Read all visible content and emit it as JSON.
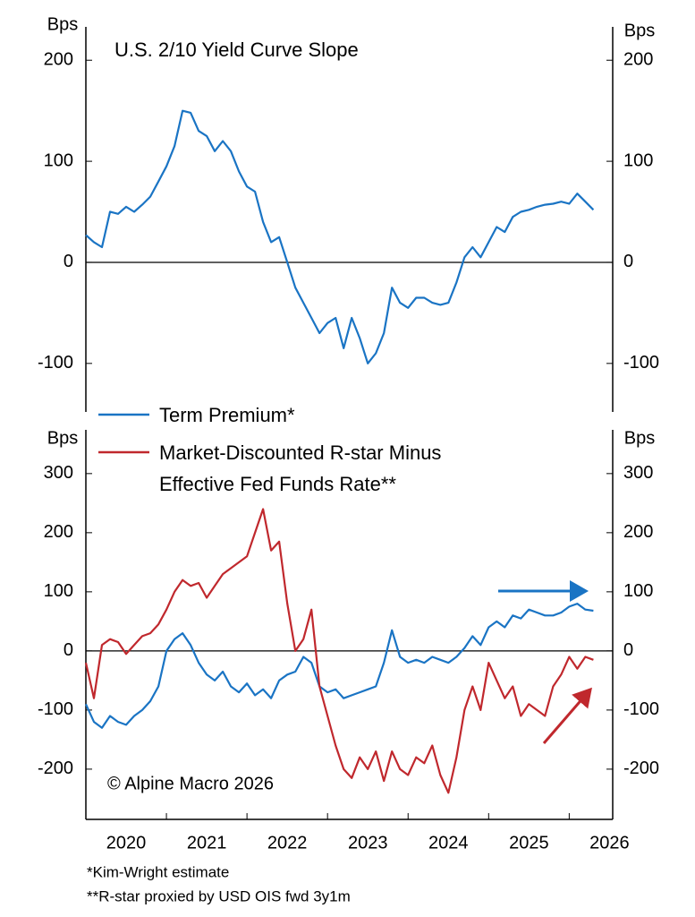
{
  "chart_data": [
    {
      "type": "line",
      "title": "U.S. 2/10 Yield Curve Slope",
      "ylabel": "Bps",
      "xlim": [
        2020,
        2026.54
      ],
      "ylim": [
        -148,
        233
      ],
      "yticks": [
        -100,
        0,
        100,
        200
      ],
      "zero_line": true,
      "x": [
        2020.0,
        2020.1,
        2020.2,
        2020.3,
        2020.4,
        2020.5,
        2020.6,
        2020.7,
        2020.8,
        2020.9,
        2021.0,
        2021.1,
        2021.2,
        2021.3,
        2021.4,
        2021.5,
        2021.6,
        2021.7,
        2021.8,
        2021.9,
        2022.0,
        2022.1,
        2022.2,
        2022.3,
        2022.4,
        2022.5,
        2022.6,
        2022.7,
        2022.8,
        2022.9,
        2023.0,
        2023.1,
        2023.2,
        2023.3,
        2023.4,
        2023.5,
        2023.6,
        2023.7,
        2023.8,
        2023.9,
        2024.0,
        2024.1,
        2024.2,
        2024.3,
        2024.4,
        2024.5,
        2024.6,
        2024.7,
        2024.8,
        2024.9,
        2025.0,
        2025.1,
        2025.2,
        2025.3,
        2025.4,
        2025.5,
        2025.6,
        2025.7,
        2025.8,
        2025.9,
        2026.0,
        2026.1,
        2026.2,
        2026.3
      ],
      "series": [
        {
          "color": "#1a74c4",
          "values": [
            27,
            20,
            15,
            50,
            48,
            55,
            50,
            57,
            65,
            80,
            95,
            115,
            150,
            148,
            130,
            125,
            110,
            120,
            110,
            90,
            75,
            70,
            40,
            20,
            25,
            0,
            -25,
            -40,
            -55,
            -70,
            -60,
            -55,
            -85,
            -55,
            -75,
            -100,
            -90,
            -70,
            -25,
            -40,
            -45,
            -35,
            -35,
            -40,
            -42,
            -40,
            -20,
            5,
            15,
            5,
            20,
            35,
            30,
            45,
            50,
            52,
            55,
            57,
            58,
            60,
            58,
            68,
            60,
            52
          ]
        }
      ]
    },
    {
      "type": "line",
      "ylabel": "Bps",
      "annotation": "© Alpine Macro 2026",
      "notes": [
        "*Kim-Wright estimate",
        "**R-star proxied by USD OIS fwd 3y1m"
      ],
      "xlim": [
        2020,
        2026.54
      ],
      "xticks": [
        2020,
        2021,
        2022,
        2023,
        2024,
        2025,
        2026
      ],
      "ylim": [
        -285,
        374
      ],
      "yticks": [
        -200,
        -100,
        0,
        100,
        200,
        300
      ],
      "zero_line": true,
      "x": [
        2020.0,
        2020.1,
        2020.2,
        2020.3,
        2020.4,
        2020.5,
        2020.6,
        2020.7,
        2020.8,
        2020.9,
        2021.0,
        2021.1,
        2021.2,
        2021.3,
        2021.4,
        2021.5,
        2021.6,
        2021.7,
        2021.8,
        2021.9,
        2022.0,
        2022.1,
        2022.2,
        2022.3,
        2022.4,
        2022.5,
        2022.6,
        2022.7,
        2022.8,
        2022.9,
        2023.0,
        2023.1,
        2023.2,
        2023.3,
        2023.4,
        2023.5,
        2023.6,
        2023.7,
        2023.8,
        2023.9,
        2024.0,
        2024.1,
        2024.2,
        2024.3,
        2024.4,
        2024.5,
        2024.6,
        2024.7,
        2024.8,
        2024.9,
        2025.0,
        2025.1,
        2025.2,
        2025.3,
        2025.4,
        2025.5,
        2025.6,
        2025.7,
        2025.8,
        2025.9,
        2026.0,
        2026.1,
        2026.2,
        2026.3
      ],
      "series": [
        {
          "name": "Term Premium*",
          "color": "#1a74c4",
          "values": [
            -90,
            -120,
            -130,
            -110,
            -120,
            -125,
            -110,
            -100,
            -85,
            -60,
            0,
            20,
            30,
            10,
            -20,
            -40,
            -50,
            -35,
            -60,
            -70,
            -55,
            -75,
            -65,
            -80,
            -50,
            -40,
            -35,
            -10,
            -20,
            -60,
            -70,
            -65,
            -80,
            -75,
            -70,
            -65,
            -60,
            -20,
            35,
            -10,
            -20,
            -15,
            -20,
            -10,
            -15,
            -20,
            -10,
            5,
            25,
            10,
            40,
            50,
            40,
            60,
            55,
            70,
            65,
            60,
            60,
            65,
            75,
            80,
            70,
            68
          ]
        },
        {
          "name": "Market-Discounted R-star Minus Effective Fed Funds Rate**",
          "color": "#c0282d",
          "values": [
            -20,
            -80,
            10,
            20,
            15,
            -5,
            10,
            25,
            30,
            45,
            70,
            100,
            120,
            110,
            115,
            90,
            110,
            130,
            140,
            150,
            160,
            200,
            240,
            170,
            185,
            80,
            0,
            20,
            70,
            -60,
            -110,
            -160,
            -200,
            -215,
            -180,
            -200,
            -170,
            -220,
            -170,
            -200,
            -210,
            -180,
            -190,
            -160,
            -210,
            -240,
            -180,
            -100,
            -60,
            -100,
            -20,
            -50,
            -80,
            -60,
            -110,
            -90,
            -100,
            -110,
            -60,
            -40,
            -10,
            -30,
            -10,
            -15
          ]
        }
      ]
    }
  ]
}
